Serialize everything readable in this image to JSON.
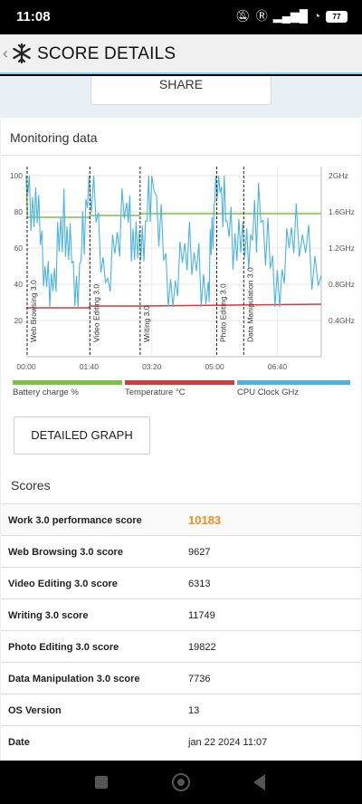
{
  "status": {
    "time": "11:08",
    "battery": "77"
  },
  "header": {
    "title": "SCORE DETAILS",
    "back": "‹"
  },
  "share_label": "SHARE",
  "monitoring": {
    "title": "Monitoring data"
  },
  "detailed_graph_label": "DETAILED GRAPH",
  "scores": {
    "title": "Scores",
    "rows": [
      {
        "label": "Work 3.0 performance score",
        "value": "10183"
      },
      {
        "label": "Web Browsing 3.0 score",
        "value": "9627"
      },
      {
        "label": "Video Editing 3.0 score",
        "value": "6313"
      },
      {
        "label": "Writing 3.0 score",
        "value": "11749"
      },
      {
        "label": "Photo Editing 3.0 score",
        "value": "19822"
      },
      {
        "label": "Data Manipulation 3.0 score",
        "value": "7736"
      },
      {
        "label": "OS Version",
        "value": "13"
      },
      {
        "label": "Date",
        "value": "jan 22 2024 11:07"
      }
    ]
  },
  "colors": {
    "battery": "#7dc242",
    "temperature": "#d23b3b",
    "cpu": "#4bb4e0",
    "accent": "#f08c1e"
  },
  "chart_data": {
    "type": "line",
    "x_ticks": [
      "00:00",
      "01:40",
      "03:20",
      "05:00",
      "06:40"
    ],
    "x_range_min": [
      0,
      470
    ],
    "y_left_ticks": [
      20,
      40,
      60,
      80,
      100
    ],
    "y_left_range": [
      0,
      105
    ],
    "y_right_ticks": [
      "0.4GHz",
      "0.8GHz",
      "1.2GHz",
      "1.6GHz",
      "2GHz"
    ],
    "y_right_range_ghz": [
      0,
      2.1
    ],
    "sections": [
      {
        "label": "Web Browsing 3.0",
        "start_min": 0
      },
      {
        "label": "Video Editing 3.0",
        "start_min": 100
      },
      {
        "label": "Writing 3.0",
        "start_min": 180
      },
      {
        "label": "Photo Editing 3.0",
        "start_min": 302
      },
      {
        "label": "Data Manipulation 3.0",
        "start_min": 345
      }
    ],
    "series": [
      {
        "name": "Battery charge %",
        "axis": "left",
        "x_min": [
          0,
          2,
          100,
          102,
          180,
          182,
          302,
          304,
          470
        ],
        "values": [
          100,
          77,
          77,
          78,
          78,
          79,
          79,
          79,
          79
        ]
      },
      {
        "name": "Temperature °C",
        "axis": "left",
        "x_min": [
          0,
          1,
          100,
          101,
          180,
          181,
          470
        ],
        "values": [
          27,
          27,
          27,
          28,
          28,
          28,
          29
        ]
      },
      {
        "name": "CPU Clock GHz",
        "axis": "right",
        "x_min": [
          0,
          20,
          40,
          60,
          80,
          100,
          130,
          160,
          180,
          200,
          230,
          260,
          290,
          302,
          320,
          345,
          370,
          400,
          430,
          470
        ],
        "values": [
          2.0,
          1.4,
          0.6,
          1.6,
          0.7,
          2.0,
          0.8,
          1.7,
          1.0,
          2.0,
          0.6,
          1.3,
          0.7,
          2.0,
          1.5,
          1.1,
          1.6,
          0.7,
          1.5,
          0.9
        ]
      }
    ]
  }
}
